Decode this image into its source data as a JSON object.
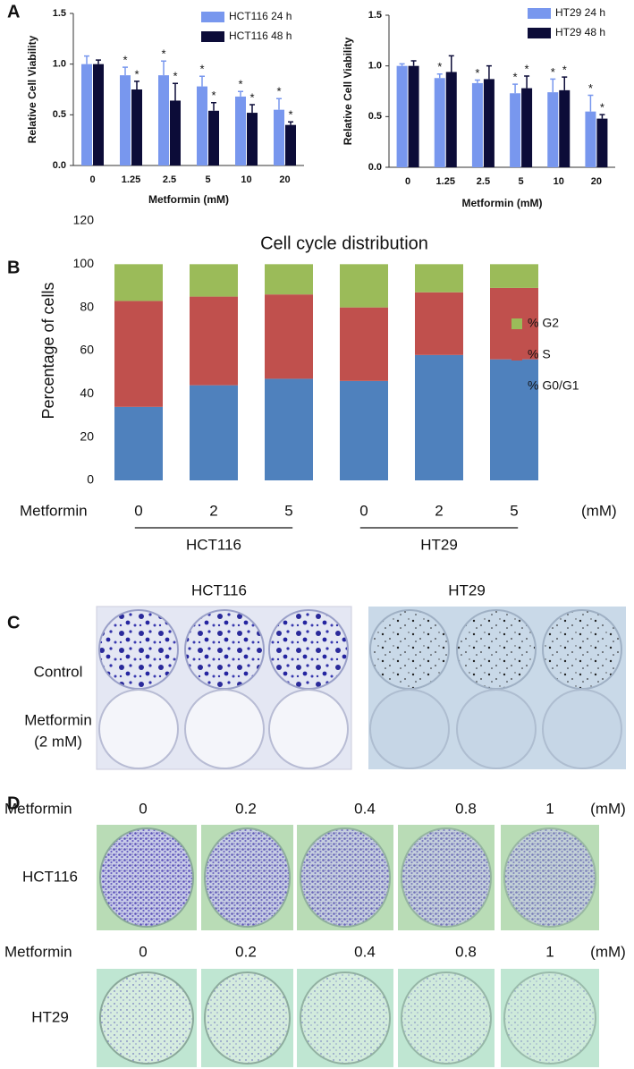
{
  "chart_data": [
    {
      "type": "bar",
      "panel": "A",
      "ylabel": "Relative Cell Viability",
      "xlabel": "Metformin (mM)",
      "categories": [
        "0",
        "1.25",
        "2.5",
        "5",
        "10",
        "20"
      ],
      "ylim": [
        0,
        1.5
      ],
      "yticks": [
        {
          "value": 0,
          "label": "0.0"
        },
        0.5,
        {
          "value": 1,
          "label": "1.0"
        },
        1.5
      ],
      "series": [
        {
          "name": "HCT116 24 h",
          "color": "#7897ee",
          "values": [
            1.0,
            0.89,
            0.89,
            0.78,
            0.68,
            0.55
          ],
          "errors": [
            0.08,
            0.08,
            0.14,
            0.1,
            0.05,
            0.11
          ],
          "annotations": [
            null,
            "*",
            "*",
            "*",
            "*",
            "*"
          ]
        },
        {
          "name": "HCT116 48 h",
          "color": "#0c0c38",
          "values": [
            1.0,
            0.75,
            0.64,
            0.54,
            0.52,
            0.4
          ],
          "errors": [
            0.04,
            0.08,
            0.17,
            0.08,
            0.08,
            0.03
          ],
          "annotations": [
            null,
            "*",
            "*",
            "*",
            "*",
            "*"
          ]
        }
      ]
    },
    {
      "type": "bar",
      "ylabel": "Relative Cell Viability",
      "xlabel": "Metformin (mM)",
      "categories": [
        "0",
        "1.25",
        "2.5",
        "5",
        "10",
        "20"
      ],
      "ylim": [
        0,
        1.5
      ],
      "yticks": [
        {
          "value": 0,
          "label": "0.0"
        },
        0.5,
        {
          "value": 1,
          "label": "1.0"
        },
        1.5
      ],
      "series": [
        {
          "name": "HT29 24 h",
          "color": "#7897ee",
          "values": [
            1.0,
            0.88,
            0.83,
            0.73,
            0.74,
            0.55
          ],
          "errors": [
            0.02,
            0.04,
            0.03,
            0.09,
            0.13,
            0.16
          ],
          "annotations": [
            null,
            "*",
            "*",
            "*",
            "*",
            "*"
          ]
        },
        {
          "name": "HT29 48 h",
          "color": "#0c0c38",
          "values": [
            1.0,
            0.94,
            0.87,
            0.78,
            0.76,
            0.48
          ],
          "errors": [
            0.05,
            0.16,
            0.13,
            0.12,
            0.13,
            0.04
          ],
          "annotations": [
            null,
            null,
            null,
            "*",
            "*",
            "*"
          ]
        }
      ]
    },
    {
      "type": "stacked-bar",
      "panel": "B",
      "title": "Cell cycle distribution",
      "ylabel": "Percentage of cells",
      "x_prefix": "Metformin",
      "x_unit": "(mM)",
      "groups": [
        "HCT116",
        "HT29"
      ],
      "categories": [
        "0",
        "2",
        "5",
        "0",
        "2",
        "5"
      ],
      "ylim": [
        0,
        120
      ],
      "yticks": [
        0,
        20,
        40,
        60,
        80,
        100,
        120
      ],
      "series": [
        {
          "name": "% G0/G1",
          "color": "#4f81bd",
          "values": [
            34,
            44,
            47,
            46,
            58,
            56
          ]
        },
        {
          "name": "% S",
          "color": "#c0504d",
          "values": [
            49,
            41,
            39,
            34,
            29,
            33
          ]
        },
        {
          "name": "% G2",
          "color": "#9bbb59",
          "values": [
            17,
            15,
            14,
            20,
            13,
            11
          ]
        }
      ]
    }
  ],
  "panel_c": {
    "label": "C",
    "columns": [
      "HCT116",
      "HT29"
    ],
    "rows": [
      "Control",
      "Metformin",
      "(2 mM)"
    ]
  },
  "panel_d": {
    "label": "D",
    "rows": [
      {
        "treatment": "Metformin",
        "doses": [
          "0",
          "0.2",
          "0.4",
          "0.8",
          "1"
        ],
        "unit": "(mM)",
        "cell_line": "HCT116"
      },
      {
        "treatment": "Metformin",
        "doses": [
          "0",
          "0.2",
          "0.4",
          "0.8",
          "1"
        ],
        "unit": "(mM)",
        "cell_line": "HT29"
      }
    ]
  }
}
